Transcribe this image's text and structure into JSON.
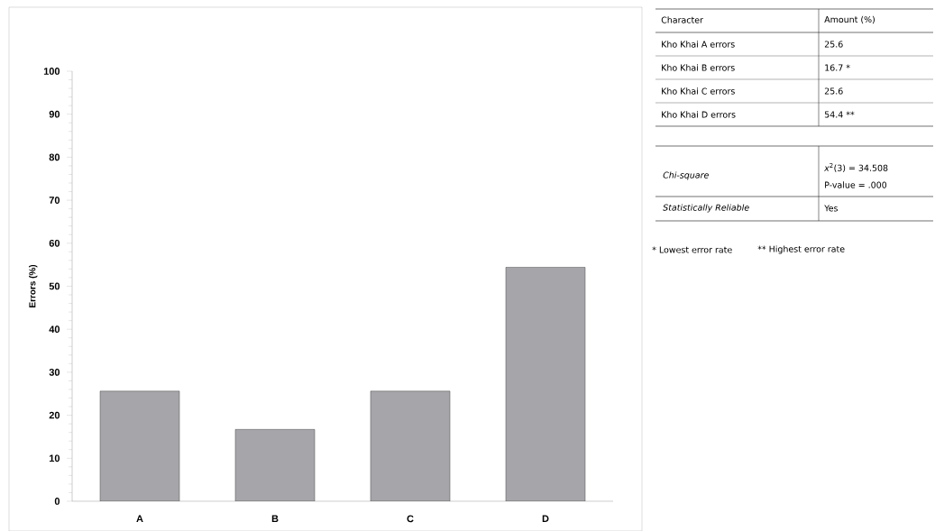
{
  "chart_data": [
    {
      "type": "bar",
      "categories": [
        "A",
        "B",
        "C",
        "D"
      ],
      "values": [
        25.6,
        16.7,
        25.6,
        54.4
      ],
      "color": "#a6a6aa",
      "ylabel": "Errors (%)",
      "ylim": [
        0,
        100
      ],
      "yticks": [
        0,
        10,
        20,
        30,
        40,
        50,
        60,
        70,
        80,
        90,
        100
      ]
    },
    {
      "type": "other",
      "annotations": [
        "Character",
        "Amount (%)",
        "Kho Khai A errors",
        "25.6",
        "Kho Khai B errors",
        "16.7 *",
        "Kho Khai C errors",
        "25.6",
        "Kho Khai D errors",
        "54.4 **",
        "*Chi-square*",
        "*x*$^{2}$(3) = 34.508",
        "P-value = .000",
        "*Statistically Reliable*",
        "Yes",
        "* Lowest error rate",
        "** Highest error rate"
      ]
    }
  ]
}
